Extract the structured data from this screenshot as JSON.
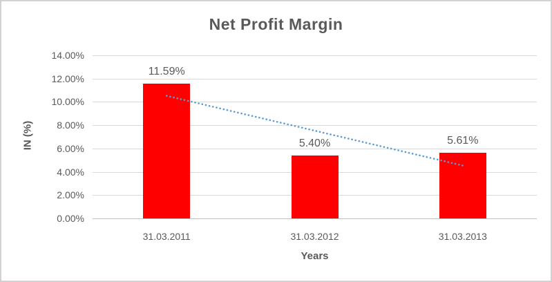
{
  "chart_data": {
    "type": "bar",
    "title": "Net Profit Margin",
    "xlabel": "Years",
    "ylabel": "IN (%)",
    "categories": [
      "31.03.2011",
      "31.03.2012",
      "31.03.2013"
    ],
    "values": [
      11.59,
      5.4,
      5.61
    ],
    "data_labels": [
      "11.59%",
      "5.40%",
      "5.61%"
    ],
    "ylim": [
      0,
      14
    ],
    "ytick_step": 2,
    "yticks": [
      {
        "value": 14,
        "label": "14.00%"
      },
      {
        "value": 12,
        "label": "12.00%"
      },
      {
        "value": 10,
        "label": "10.00%"
      },
      {
        "value": 8,
        "label": "8.00%"
      },
      {
        "value": 6,
        "label": "6.00%"
      },
      {
        "value": 4,
        "label": "4.00%"
      },
      {
        "value": 2,
        "label": "2.00%"
      },
      {
        "value": 0,
        "label": "0.00%"
      }
    ],
    "grid": true,
    "legend": "none",
    "trendline": {
      "type": "linear",
      "line_style": "dotted",
      "color": "#5b9bd5",
      "start": {
        "category_index": 0,
        "value": 10.52
      },
      "end": {
        "category_index": 2,
        "value": 4.54
      }
    },
    "colors": {
      "bar": "#ff0000",
      "text": "#595959",
      "gridline": "#d9d9d9",
      "axis_line": "#bfbfbf",
      "frame_border": "#d2d0d1",
      "background": "#ffffff"
    }
  }
}
